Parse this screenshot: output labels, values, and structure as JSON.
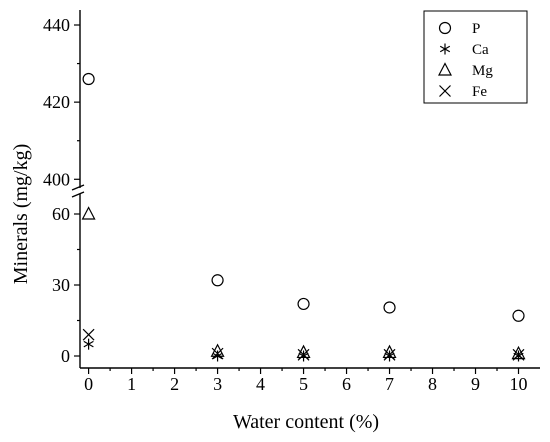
{
  "chart_data": {
    "type": "scatter",
    "title": "",
    "xlabel": "Water content (%)",
    "ylabel": "Minerals (mg/kg)",
    "xlim": [
      -0.2,
      10.5
    ],
    "x_ticks": [
      0,
      1,
      2,
      3,
      4,
      5,
      6,
      7,
      8,
      9,
      10
    ],
    "y_axis_break": {
      "lower_range": [
        -3,
        68
      ],
      "upper_range": [
        398,
        440
      ]
    },
    "y_ticks": [
      0,
      30,
      60,
      400,
      420,
      440
    ],
    "legend_position": "top-right",
    "grid": false,
    "series": [
      {
        "name": "P",
        "marker": "circle",
        "x": [
          0,
          3,
          5,
          7,
          10
        ],
        "y": [
          426,
          32,
          22,
          20.5,
          17
        ]
      },
      {
        "name": "Ca",
        "marker": "asterisk",
        "x": [
          0,
          3,
          5,
          7,
          10
        ],
        "y": [
          5,
          0,
          0,
          0,
          0
        ]
      },
      {
        "name": "Mg",
        "marker": "triangle",
        "x": [
          0,
          3,
          5,
          7,
          10
        ],
        "y": [
          60,
          2,
          1.5,
          1.5,
          1
        ]
      },
      {
        "name": "Fe",
        "marker": "x",
        "x": [
          0,
          3,
          5,
          7,
          10
        ],
        "y": [
          9,
          1,
          0.5,
          0.5,
          0.5
        ]
      }
    ]
  }
}
